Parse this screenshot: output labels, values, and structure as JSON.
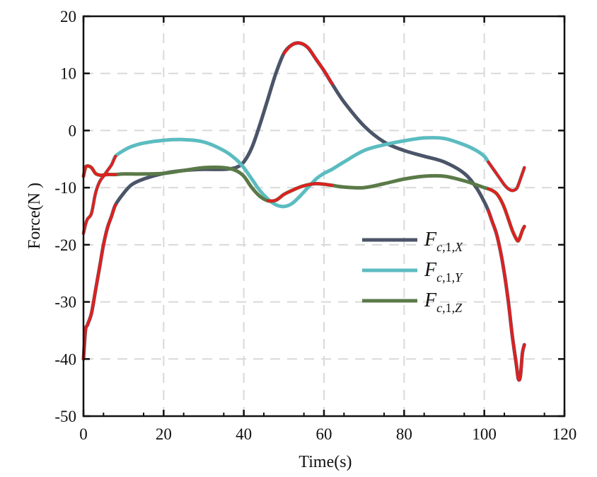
{
  "chart_data": {
    "type": "line",
    "title": "",
    "xlabel": "Time(s)",
    "ylabel": "Force(N )",
    "xlim": [
      0,
      120
    ],
    "ylim": [
      -50,
      20
    ],
    "xticks": [
      0,
      20,
      40,
      60,
      80,
      100,
      120
    ],
    "yticks": [
      -50,
      -40,
      -30,
      -20,
      -10,
      0,
      10,
      20
    ],
    "xtick_labels": [
      "0",
      "20",
      "40",
      "60",
      "80",
      "100",
      "120"
    ],
    "ytick_labels": [
      "-50",
      "-40",
      "-30",
      "-20",
      "-10",
      "0",
      "10",
      "20"
    ],
    "grid": true,
    "legend_position": "center-right",
    "highlight_color": "#e02020",
    "series": [
      {
        "name": "F_c,1,X",
        "legend": {
          "main": "F",
          "sub1": "c",
          "sub2": ",1,",
          "sub3": "X"
        },
        "color": "#4b5568",
        "x": [
          0,
          0.5,
          1,
          2,
          3,
          4,
          5,
          6,
          7,
          8,
          10,
          12,
          15,
          20,
          25,
          30,
          35,
          38,
          40,
          42,
          44,
          46,
          48,
          50,
          52,
          54,
          56,
          58,
          60,
          62,
          65,
          70,
          75,
          80,
          85,
          90,
          95,
          98,
          100,
          101,
          102,
          103,
          104,
          105,
          106,
          107,
          108,
          108.5,
          109,
          109.5,
          110
        ],
        "y": [
          -40,
          -35,
          -34,
          -32,
          -28,
          -24,
          -20,
          -17,
          -15,
          -13,
          -11,
          -9.5,
          -8.5,
          -7.5,
          -7,
          -6.8,
          -6.8,
          -6.5,
          -5.5,
          -3,
          1,
          5.5,
          10,
          13.5,
          15,
          15.3,
          14.5,
          12.5,
          10.5,
          8.2,
          5,
          0.8,
          -2,
          -3.5,
          -4.5,
          -5.5,
          -7.5,
          -10,
          -12.5,
          -14,
          -16,
          -18,
          -21,
          -25,
          -30,
          -36,
          -41,
          -43.5,
          -43,
          -39,
          -37.5
        ]
      },
      {
        "name": "F_c,1,Y",
        "legend": {
          "main": "F",
          "sub1": "c",
          "sub2": ",1,",
          "sub3": "Y"
        },
        "color": "#5bbcc0",
        "x": [
          0,
          0.5,
          1,
          2,
          3,
          4,
          5,
          6,
          7,
          8,
          10,
          12,
          15,
          20,
          25,
          30,
          35,
          38,
          40,
          42,
          44,
          46,
          48,
          50,
          52,
          54,
          56,
          58,
          60,
          62,
          65,
          70,
          75,
          80,
          85,
          90,
          95,
          98,
          100,
          101,
          102,
          103,
          104,
          105,
          106,
          107,
          108,
          108.5,
          109,
          109.5,
          110
        ],
        "y": [
          -18,
          -16.5,
          -15.5,
          -14.5,
          -11,
          -9,
          -8,
          -7,
          -6,
          -4.5,
          -3.5,
          -2.8,
          -2.2,
          -1.7,
          -1.6,
          -2,
          -3.5,
          -5,
          -6.5,
          -8.5,
          -10.5,
          -12,
          -13,
          -13.3,
          -12.8,
          -11.5,
          -10,
          -8.5,
          -7.5,
          -6.8,
          -5.5,
          -3.5,
          -2.5,
          -1.8,
          -1.3,
          -1.4,
          -2.5,
          -3.5,
          -4.5,
          -5.5,
          -6.5,
          -7.5,
          -8.5,
          -9.5,
          -10.2,
          -10.5,
          -10.2,
          -9.5,
          -8.5,
          -7.5,
          -6.5
        ]
      },
      {
        "name": "F_c,1,Z",
        "legend": {
          "main": "F",
          "sub1": "c",
          "sub2": ",1,",
          "sub3": "Z"
        },
        "color": "#5a7a48",
        "x": [
          0,
          0.5,
          1,
          2,
          3,
          4,
          5,
          6,
          7,
          8,
          10,
          12,
          15,
          20,
          25,
          30,
          35,
          38,
          40,
          42,
          44,
          46,
          48,
          50,
          52,
          54,
          56,
          58,
          60,
          62,
          65,
          70,
          75,
          80,
          85,
          90,
          95,
          98,
          100,
          101,
          102,
          103,
          104,
          105,
          106,
          107,
          108,
          108.5,
          109,
          109.5,
          110
        ],
        "y": [
          -8,
          -6.5,
          -6.2,
          -6.5,
          -7.5,
          -7.8,
          -7.8,
          -7.7,
          -7.7,
          -7.7,
          -7.6,
          -7.6,
          -7.6,
          -7.5,
          -7,
          -6.5,
          -6.5,
          -7,
          -8,
          -10,
          -11.5,
          -12.3,
          -12.2,
          -11.2,
          -10.5,
          -9.9,
          -9.5,
          -9.3,
          -9.4,
          -9.6,
          -9.9,
          -10,
          -9.3,
          -8.5,
          -8,
          -8,
          -8.8,
          -9.5,
          -10,
          -10.2,
          -10.5,
          -11,
          -12,
          -13.5,
          -15.5,
          -17.5,
          -19,
          -19.3,
          -18.5,
          -17.5,
          -16.8
        ]
      }
    ],
    "highlight_ranges": [
      {
        "series": 0,
        "from": 0,
        "to": 8
      },
      {
        "series": 0,
        "from": 50,
        "to": 62
      },
      {
        "series": 0,
        "from": 101,
        "to": 110
      },
      {
        "series": 1,
        "from": 0,
        "to": 8
      },
      {
        "series": 1,
        "from": 101,
        "to": 110
      },
      {
        "series": 2,
        "from": 0,
        "to": 8
      },
      {
        "series": 2,
        "from": 46,
        "to": 62
      },
      {
        "series": 2,
        "from": 101,
        "to": 110
      }
    ]
  }
}
